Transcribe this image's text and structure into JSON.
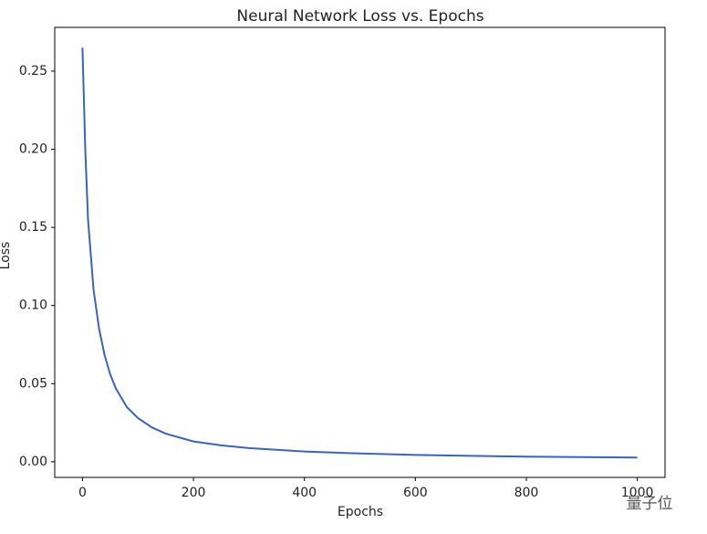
{
  "chart_data": {
    "type": "line",
    "title": "Neural Network Loss vs. Epochs",
    "x_label": "Epochs",
    "y_label": "Loss",
    "x": [
      0,
      5,
      10,
      20,
      30,
      40,
      50,
      60,
      80,
      100,
      125,
      150,
      200,
      250,
      300,
      400,
      500,
      600,
      700,
      800,
      900,
      1000
    ],
    "series": [
      {
        "name": "Loss",
        "color": "#3b64b3",
        "values": [
          0.265,
          0.2,
          0.155,
          0.11,
          0.085,
          0.068,
          0.056,
          0.047,
          0.035,
          0.028,
          0.022,
          0.018,
          0.013,
          0.0105,
          0.0088,
          0.0066,
          0.0053,
          0.0044,
          0.0038,
          0.0033,
          0.003,
          0.0027
        ]
      }
    ],
    "xlim": [
      -50,
      1050
    ],
    "xticks": [
      0,
      200,
      400,
      600,
      800,
      1000
    ],
    "ylim": [
      -0.01,
      0.278
    ],
    "yticks": [
      {
        "value": 0,
        "label": "0.00"
      },
      {
        "value": 0.05,
        "label": "0.05"
      },
      {
        "value": 0.1,
        "label": "0.10"
      },
      {
        "value": 0.15,
        "label": "0.15"
      },
      {
        "value": 0.2,
        "label": "0.20"
      },
      {
        "value": 0.25,
        "label": "0.25"
      }
    ],
    "grid": false
  },
  "watermark": "量子位"
}
